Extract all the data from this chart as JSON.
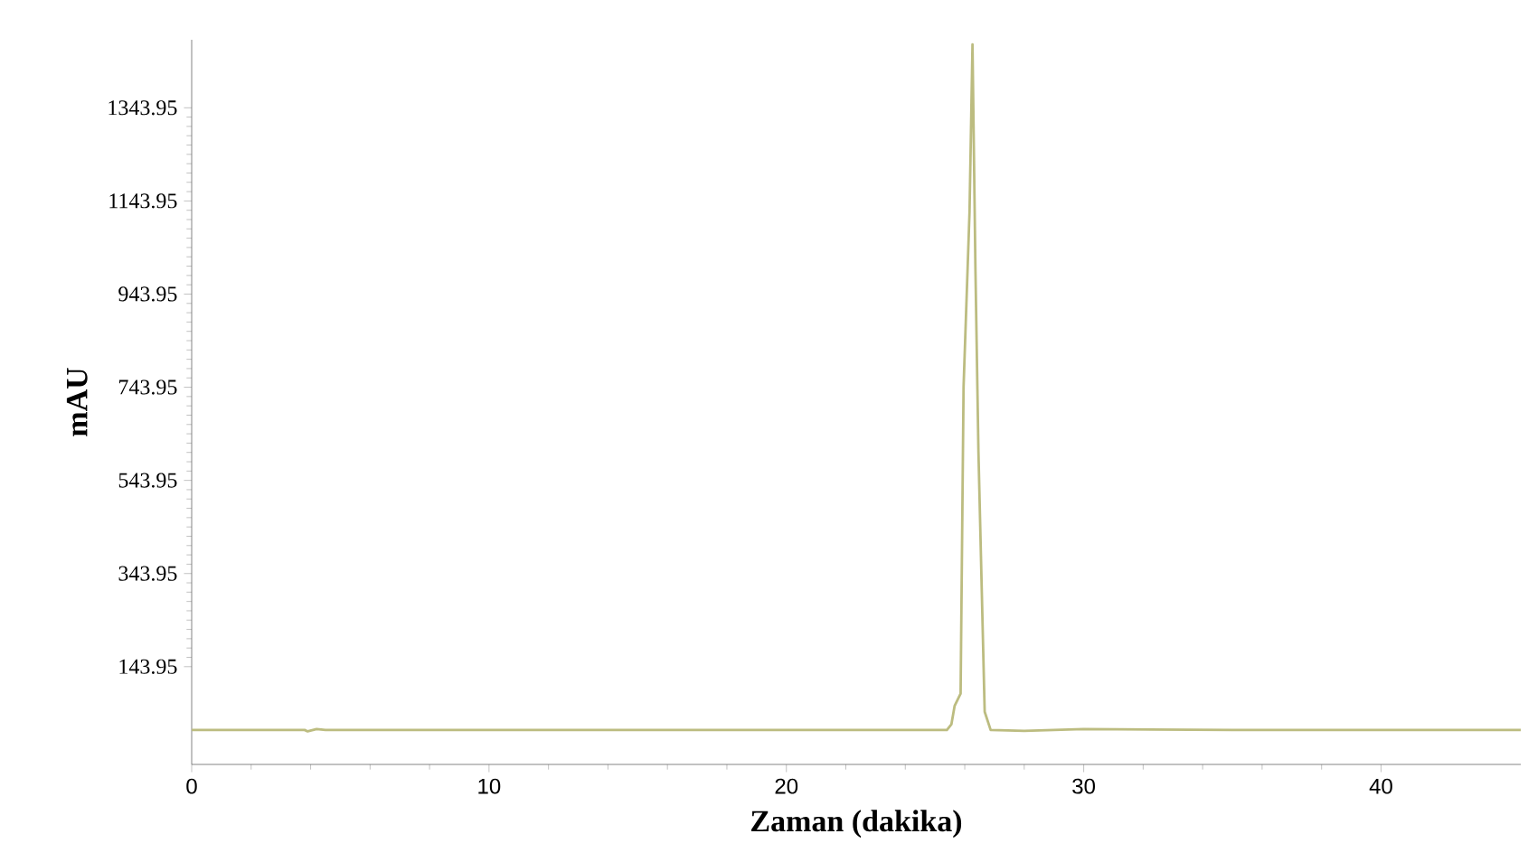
{
  "chart_data": {
    "type": "line",
    "xlabel": "Zaman (dakika)",
    "ylabel": "mAU",
    "xlim": [
      0,
      44.7
    ],
    "ylim": [
      -66,
      1490
    ],
    "xticks": [
      0,
      10,
      20,
      30,
      40
    ],
    "yticks": [
      143.95,
      343.95,
      543.95,
      743.95,
      943.95,
      1143.95,
      1343.95
    ],
    "marker": "none",
    "line_style": "solid",
    "series": [
      {
        "color": "#bcbc80",
        "x": [
          0,
          3.8,
          3.9,
          4.2,
          4.5,
          10,
          20,
          25.4,
          25.55,
          25.66,
          25.86,
          25.96,
          26.16,
          26.26,
          26.36,
          26.46,
          26.67,
          26.87,
          28,
          30,
          35,
          44.7
        ],
        "values": [
          8,
          8,
          5,
          10,
          8,
          8,
          8,
          8,
          20,
          60,
          86,
          745,
          1120,
          1480,
          993,
          605,
          47,
          8,
          6,
          10,
          8,
          8
        ]
      }
    ]
  }
}
